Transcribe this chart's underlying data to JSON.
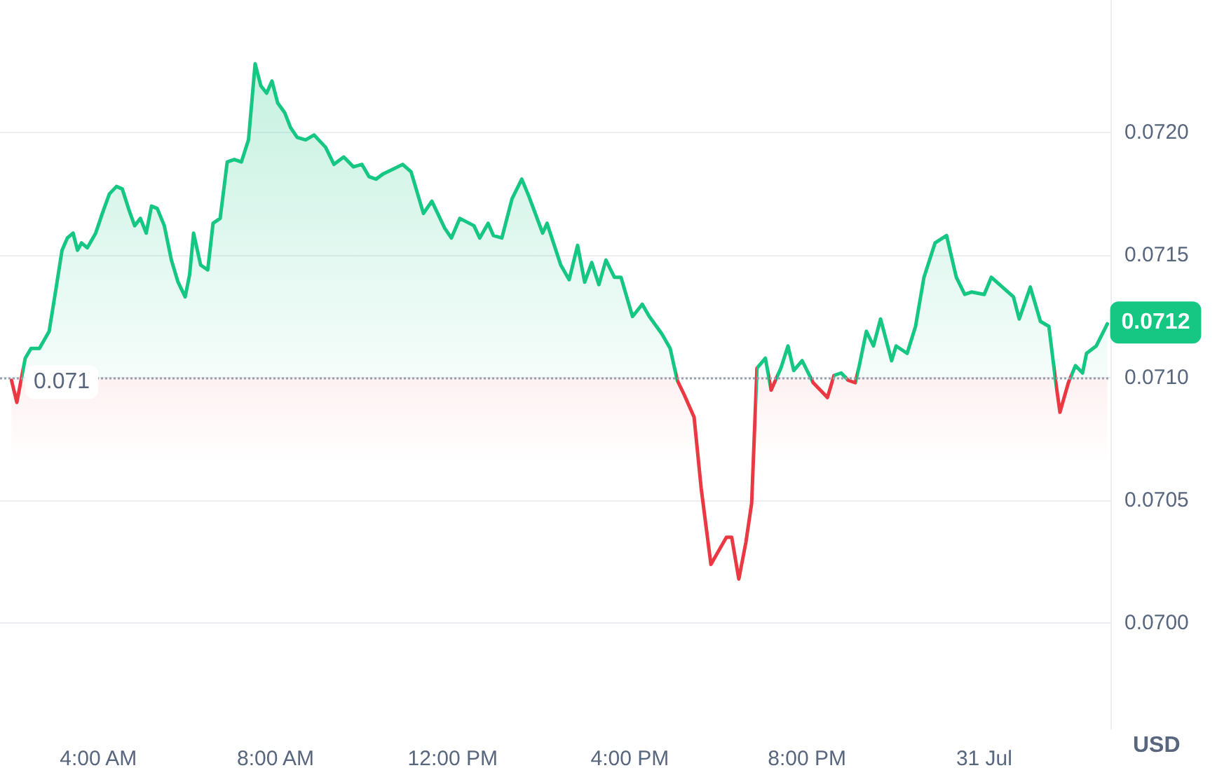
{
  "chart_data": {
    "type": "area",
    "ylabel": "USD",
    "grid": "y",
    "marker": "none",
    "line_style": "solid",
    "xlim": [
      1.78,
      26.85
    ],
    "xticks": [
      {
        "value": 4,
        "label": "4:00 AM"
      },
      {
        "value": 8,
        "label": "8:00 AM"
      },
      {
        "value": 12,
        "label": "12:00 PM"
      },
      {
        "value": 16,
        "label": "4:00 PM"
      },
      {
        "value": 20,
        "label": "8:00 PM"
      },
      {
        "value": 24,
        "label": "31 Jul"
      }
    ],
    "ylim": [
      0.06957,
      0.07254
    ],
    "yticks": [
      {
        "value": 0.07,
        "label": "0.0700"
      },
      {
        "value": 0.0705,
        "label": "0.0705"
      },
      {
        "value": 0.071,
        "label": "0.0710"
      },
      {
        "value": 0.0715,
        "label": "0.0715"
      },
      {
        "value": 0.072,
        "label": "0.0720"
      }
    ],
    "ref_lines": [
      {
        "axis": "y",
        "value": 0.071,
        "label": "0.071",
        "color": "#9aa0ab",
        "line_style": "dotted"
      }
    ],
    "annotations": [
      {
        "text": "0.0712",
        "x": 26.78,
        "y": 0.07122
      }
    ],
    "x": [
      2.04,
      2.16,
      2.35,
      2.48,
      2.67,
      2.89,
      3.05,
      3.18,
      3.3,
      3.43,
      3.53,
      3.62,
      3.75,
      3.94,
      4.09,
      4.25,
      4.41,
      4.54,
      4.7,
      4.82,
      4.95,
      5.08,
      5.2,
      5.33,
      5.49,
      5.65,
      5.8,
      5.96,
      6.06,
      6.15,
      6.31,
      6.47,
      6.59,
      6.75,
      6.91,
      7.07,
      7.23,
      7.39,
      7.54,
      7.67,
      7.8,
      7.92,
      8.05,
      8.21,
      8.34,
      8.49,
      8.68,
      8.87,
      9.13,
      9.32,
      9.54,
      9.76,
      9.95,
      10.11,
      10.27,
      10.42,
      10.65,
      10.87,
      11.06,
      11.34,
      11.53,
      11.82,
      11.97,
      12.16,
      12.48,
      12.61,
      12.8,
      12.92,
      13.11,
      13.34,
      13.56,
      13.72,
      14.03,
      14.13,
      14.44,
      14.63,
      14.82,
      14.98,
      15.14,
      15.3,
      15.46,
      15.65,
      15.8,
      16.06,
      16.28,
      16.44,
      16.72,
      16.91,
      17.07,
      17.23,
      17.45,
      17.61,
      17.83,
      18.02,
      18.18,
      18.3,
      18.46,
      18.62,
      18.75,
      18.87,
      19.06,
      19.19,
      19.41,
      19.57,
      19.7,
      19.89,
      20.14,
      20.46,
      20.61,
      20.77,
      20.93,
      21.09,
      21.18,
      21.34,
      21.5,
      21.66,
      21.91,
      22.01,
      22.26,
      22.45,
      22.64,
      22.89,
      23.15,
      23.37,
      23.56,
      23.72,
      24.0,
      24.16,
      24.41,
      24.66,
      24.79,
      25.04,
      25.27,
      25.46,
      25.61,
      25.71,
      25.9,
      26.06,
      26.22,
      26.31,
      26.53,
      26.78
    ],
    "series": [
      {
        "color": "#16c784",
        "values": [
          0.07099,
          0.0709,
          0.07108,
          0.07112,
          0.07112,
          0.07119,
          0.07137,
          0.07152,
          0.07157,
          0.07159,
          0.07152,
          0.07155,
          0.07153,
          0.07159,
          0.07167,
          0.07175,
          0.07178,
          0.07177,
          0.07168,
          0.07162,
          0.07165,
          0.07159,
          0.0717,
          0.07169,
          0.07162,
          0.07148,
          0.07139,
          0.07133,
          0.07142,
          0.07159,
          0.07146,
          0.07144,
          0.07163,
          0.07165,
          0.07188,
          0.07189,
          0.07188,
          0.07197,
          0.07228,
          0.07219,
          0.07216,
          0.07221,
          0.07212,
          0.07208,
          0.07202,
          0.07198,
          0.07197,
          0.07199,
          0.07194,
          0.07187,
          0.0719,
          0.07186,
          0.07187,
          0.07182,
          0.07181,
          0.07183,
          0.07185,
          0.07187,
          0.07184,
          0.07167,
          0.07172,
          0.07161,
          0.07157,
          0.07165,
          0.07162,
          0.07157,
          0.07163,
          0.07158,
          0.07157,
          0.07173,
          0.07181,
          0.07174,
          0.07159,
          0.07163,
          0.07146,
          0.0714,
          0.07154,
          0.07139,
          0.07147,
          0.07138,
          0.07148,
          0.07141,
          0.07141,
          0.07125,
          0.0713,
          0.07125,
          0.07118,
          0.07112,
          0.07099,
          0.07093,
          0.07084,
          0.07055,
          0.07024,
          0.0703,
          0.07035,
          0.07035,
          0.07018,
          0.07033,
          0.07049,
          0.07104,
          0.07108,
          0.07095,
          0.07104,
          0.07113,
          0.07103,
          0.07107,
          0.07098,
          0.07092,
          0.07101,
          0.07102,
          0.07099,
          0.07098,
          0.07105,
          0.07119,
          0.07113,
          0.07124,
          0.07107,
          0.07113,
          0.0711,
          0.07121,
          0.07141,
          0.07155,
          0.07158,
          0.07141,
          0.07134,
          0.07135,
          0.07134,
          0.07141,
          0.07137,
          0.07133,
          0.07124,
          0.07137,
          0.07123,
          0.07121,
          0.07099,
          0.07086,
          0.07098,
          0.07105,
          0.07102,
          0.0711,
          0.07113,
          0.07122
        ],
        "colors": [
          "#ea3943",
          "#ea3943",
          "#16c784",
          "#16c784",
          "#16c784",
          "#16c784",
          "#16c784",
          "#16c784",
          "#16c784",
          "#16c784",
          "#16c784",
          "#16c784",
          "#16c784",
          "#16c784",
          "#16c784",
          "#16c784",
          "#16c784",
          "#16c784",
          "#16c784",
          "#16c784",
          "#16c784",
          "#16c784",
          "#16c784",
          "#16c784",
          "#16c784",
          "#16c784",
          "#16c784",
          "#16c784",
          "#16c784",
          "#16c784",
          "#16c784",
          "#16c784",
          "#16c784",
          "#16c784",
          "#16c784",
          "#16c784",
          "#16c784",
          "#16c784",
          "#16c784",
          "#16c784",
          "#16c784",
          "#16c784",
          "#16c784",
          "#16c784",
          "#16c784",
          "#16c784",
          "#16c784",
          "#16c784",
          "#16c784",
          "#16c784",
          "#16c784",
          "#16c784",
          "#16c784",
          "#16c784",
          "#16c784",
          "#16c784",
          "#16c784",
          "#16c784",
          "#16c784",
          "#16c784",
          "#16c784",
          "#16c784",
          "#16c784",
          "#16c784",
          "#16c784",
          "#16c784",
          "#16c784",
          "#16c784",
          "#16c784",
          "#16c784",
          "#16c784",
          "#16c784",
          "#16c784",
          "#16c784",
          "#16c784",
          "#16c784",
          "#16c784",
          "#16c784",
          "#16c784",
          "#16c784",
          "#16c784",
          "#16c784",
          "#16c784",
          "#16c784",
          "#16c784",
          "#16c784",
          "#16c784",
          "#16c784",
          "#ea3943",
          "#ea3943",
          "#ea3943",
          "#ea3943",
          "#ea3943",
          "#ea3943",
          "#ea3943",
          "#ea3943",
          "#ea3943",
          "#ea3943",
          "#ea3943",
          "#16c784",
          "#16c784",
          "#ea3943",
          "#16c784",
          "#16c784",
          "#16c784",
          "#16c784",
          "#ea3943",
          "#ea3943",
          "#16c784",
          "#16c784",
          "#ea3943",
          "#ea3943",
          "#16c784",
          "#16c784",
          "#16c784",
          "#16c784",
          "#16c784",
          "#16c784",
          "#16c784",
          "#16c784",
          "#16c784",
          "#16c784",
          "#16c784",
          "#16c784",
          "#16c784",
          "#16c784",
          "#16c784",
          "#16c784",
          "#16c784",
          "#16c784",
          "#16c784",
          "#16c784",
          "#16c784",
          "#16c784",
          "#ea3943",
          "#ea3943",
          "#ea3943",
          "#16c784",
          "#16c784",
          "#16c784",
          "#16c784",
          "#16c784"
        ]
      }
    ]
  }
}
